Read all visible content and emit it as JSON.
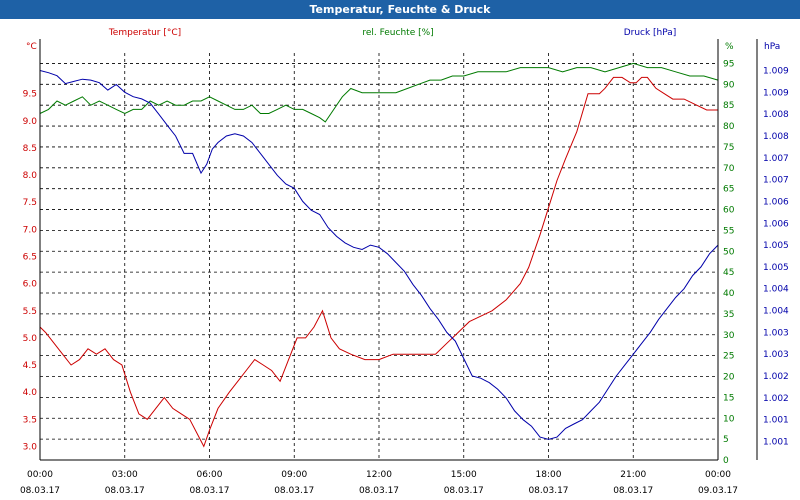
{
  "title": "Temperatur, Feuchte & Druck",
  "colors": {
    "temperature": "#cc0000",
    "humidity": "#007a00",
    "pressure": "#0000aa",
    "titlebar": "#1e61a6"
  },
  "chart_data": {
    "type": "line",
    "x_labels": [
      {
        "time": "00:00",
        "date": "08.03.17"
      },
      {
        "time": "03:00",
        "date": "08.03.17"
      },
      {
        "time": "06:00",
        "date": "08.03.17"
      },
      {
        "time": "09:00",
        "date": "08.03.17"
      },
      {
        "time": "12:00",
        "date": "08.03.17"
      },
      {
        "time": "15:00",
        "date": "08.03.17"
      },
      {
        "time": "18:00",
        "date": "08.03.17"
      },
      {
        "time": "21:00",
        "date": "08.03.17"
      },
      {
        "time": "00:00",
        "date": "09.03.17"
      }
    ],
    "x_range_hours": [
      0,
      24
    ],
    "axes": {
      "left": {
        "label": "Temperatur [°C]",
        "unit": "°C",
        "min": 2.75,
        "max": 10.25,
        "ticks": [
          "3.0",
          "3.5",
          "4.0",
          "4.5",
          "5.0",
          "5.5",
          "6.0",
          "6.5",
          "7.0",
          "7.5",
          "8.0",
          "8.5",
          "9.0",
          "9.5"
        ]
      },
      "middle": {
        "label": "rel. Feuchte [%]",
        "unit": "%",
        "min": 0,
        "max": 97.5,
        "ticks": [
          "0",
          "5",
          "10",
          "15",
          "20",
          "25",
          "30",
          "35",
          "40",
          "45",
          "50",
          "55",
          "60",
          "65",
          "70",
          "75",
          "80",
          "85",
          "90",
          "95"
        ],
        "top_tick": "%"
      },
      "right": {
        "label": "Druck [hPa]",
        "unit": "hPa",
        "ticks": [
          "1.001",
          "1.001",
          "1.002",
          "1.002",
          "1.003",
          "1.003",
          "1.004",
          "1.004",
          "1.005",
          "1.005",
          "1.006",
          "1.006",
          "1.007",
          "1.007",
          "1.008",
          "1.008",
          "1.009",
          "1.009"
        ]
      }
    },
    "series": [
      {
        "name": "Temperatur",
        "axis": "left",
        "color": "#cc0000",
        "x": [
          0,
          0.2,
          0.5,
          0.8,
          1.1,
          1.4,
          1.7,
          2.0,
          2.3,
          2.6,
          2.9,
          3.2,
          3.5,
          3.8,
          4.1,
          4.4,
          4.7,
          5.0,
          5.3,
          5.6,
          5.8,
          6.0,
          6.3,
          6.7,
          7.0,
          7.3,
          7.6,
          7.9,
          8.2,
          8.5,
          8.8,
          9.1,
          9.4,
          9.7,
          10.0,
          10.3,
          10.6,
          11.0,
          11.5,
          12.0,
          12.5,
          13.0,
          13.5,
          14.0,
          14.4,
          14.8,
          15.2,
          15.6,
          16.0,
          16.5,
          17.0,
          17.3,
          17.7,
          18.0,
          18.3,
          18.6,
          19.0,
          19.4,
          19.8,
          20.0,
          20.3,
          20.6,
          20.9,
          21.1,
          21.3,
          21.5,
          21.8,
          22.1,
          22.4,
          22.8,
          23.2,
          23.6,
          24.0
        ],
        "values": [
          5.2,
          5.1,
          4.9,
          4.7,
          4.5,
          4.6,
          4.8,
          4.7,
          4.8,
          4.6,
          4.5,
          4.0,
          3.6,
          3.5,
          3.7,
          3.9,
          3.7,
          3.6,
          3.5,
          3.2,
          3.0,
          3.3,
          3.7,
          4.0,
          4.2,
          4.4,
          4.6,
          4.5,
          4.4,
          4.2,
          4.6,
          5.0,
          5.0,
          5.2,
          5.5,
          5.0,
          4.8,
          4.7,
          4.6,
          4.6,
          4.7,
          4.7,
          4.7,
          4.7,
          4.9,
          5.1,
          5.3,
          5.4,
          5.5,
          5.7,
          6.0,
          6.3,
          6.9,
          7.4,
          7.9,
          8.3,
          8.8,
          9.5,
          9.5,
          9.6,
          9.8,
          9.8,
          9.7,
          9.7,
          9.8,
          9.8,
          9.6,
          9.5,
          9.4,
          9.4,
          9.3,
          9.2,
          9.2
        ]
      },
      {
        "name": "rel. Feuchte",
        "axis": "middle",
        "color": "#007a00",
        "x": [
          0,
          0.3,
          0.6,
          0.9,
          1.2,
          1.5,
          1.8,
          2.1,
          2.4,
          2.7,
          3.0,
          3.3,
          3.6,
          3.9,
          4.2,
          4.5,
          4.8,
          5.1,
          5.4,
          5.7,
          6.0,
          6.3,
          6.6,
          6.9,
          7.2,
          7.5,
          7.8,
          8.1,
          8.4,
          8.7,
          9.0,
          9.3,
          9.6,
          9.9,
          10.1,
          10.4,
          10.7,
          11.0,
          11.4,
          11.8,
          12.2,
          12.6,
          13.0,
          13.4,
          13.8,
          14.2,
          14.6,
          15.0,
          15.5,
          16.0,
          16.5,
          17.0,
          17.5,
          18.0,
          18.5,
          19.0,
          19.5,
          20.0,
          20.5,
          21.0,
          21.5,
          22.0,
          22.5,
          23.0,
          23.5,
          24.0
        ],
        "values": [
          83,
          84,
          86,
          85,
          86,
          87,
          85,
          86,
          85,
          84,
          83,
          84,
          84,
          86,
          85,
          86,
          85,
          85,
          86,
          86,
          87,
          86,
          85,
          84,
          84,
          85,
          83,
          83,
          84,
          85,
          84,
          84,
          83,
          82,
          81,
          84,
          87,
          89,
          88,
          88,
          88,
          88,
          89,
          90,
          91,
          91,
          92,
          92,
          93,
          93,
          93,
          94,
          94,
          94,
          93,
          94,
          94,
          93,
          94,
          95,
          94,
          94,
          93,
          92,
          92,
          91
        ]
      },
      {
        "name": "Druck",
        "axis": "right",
        "color": "#0000aa",
        "x": [
          0,
          0.3,
          0.6,
          0.9,
          1.2,
          1.5,
          1.8,
          2.1,
          2.4,
          2.7,
          3.0,
          3.3,
          3.6,
          3.9,
          4.2,
          4.5,
          4.8,
          5.1,
          5.4,
          5.7,
          5.9,
          6.1,
          6.3,
          6.6,
          6.9,
          7.2,
          7.5,
          7.8,
          8.1,
          8.4,
          8.7,
          9.0,
          9.3,
          9.6,
          9.9,
          10.2,
          10.5,
          10.8,
          11.1,
          11.4,
          11.7,
          12.0,
          12.3,
          12.6,
          12.9,
          13.2,
          13.5,
          13.8,
          14.1,
          14.4,
          14.7,
          15.0,
          15.3,
          15.6,
          15.9,
          16.2,
          16.5,
          16.8,
          17.1,
          17.4,
          17.7,
          18.0,
          18.3,
          18.6,
          18.9,
          19.2,
          19.5,
          19.8,
          20.1,
          20.4,
          20.7,
          21.0,
          21.3,
          21.6,
          21.9,
          22.2,
          22.5,
          22.8,
          23.1,
          23.4,
          23.7,
          24.0
        ],
        "values": [
          1009.5,
          1009.45,
          1009.38,
          1009.2,
          1009.25,
          1009.3,
          1009.28,
          1009.22,
          1009.05,
          1009.18,
          1009.0,
          1008.9,
          1008.85,
          1008.75,
          1008.5,
          1008.25,
          1008.0,
          1007.6,
          1007.6,
          1007.15,
          1007.35,
          1007.7,
          1007.85,
          1008.0,
          1008.05,
          1008.0,
          1007.85,
          1007.6,
          1007.35,
          1007.1,
          1006.9,
          1006.8,
          1006.5,
          1006.3,
          1006.2,
          1005.9,
          1005.7,
          1005.55,
          1005.45,
          1005.4,
          1005.5,
          1005.45,
          1005.3,
          1005.1,
          1004.9,
          1004.6,
          1004.35,
          1004.05,
          1003.8,
          1003.5,
          1003.3,
          1002.9,
          1002.5,
          1002.45,
          1002.35,
          1002.2,
          1002.0,
          1001.7,
          1001.5,
          1001.35,
          1001.1,
          1001.05,
          1001.1,
          1001.3,
          1001.4,
          1001.5,
          1001.7,
          1001.9,
          1002.2,
          1002.5,
          1002.75,
          1003.0,
          1003.25,
          1003.5,
          1003.8,
          1004.05,
          1004.3,
          1004.5,
          1004.8,
          1005.0,
          1005.3,
          1005.5
        ]
      }
    ]
  }
}
